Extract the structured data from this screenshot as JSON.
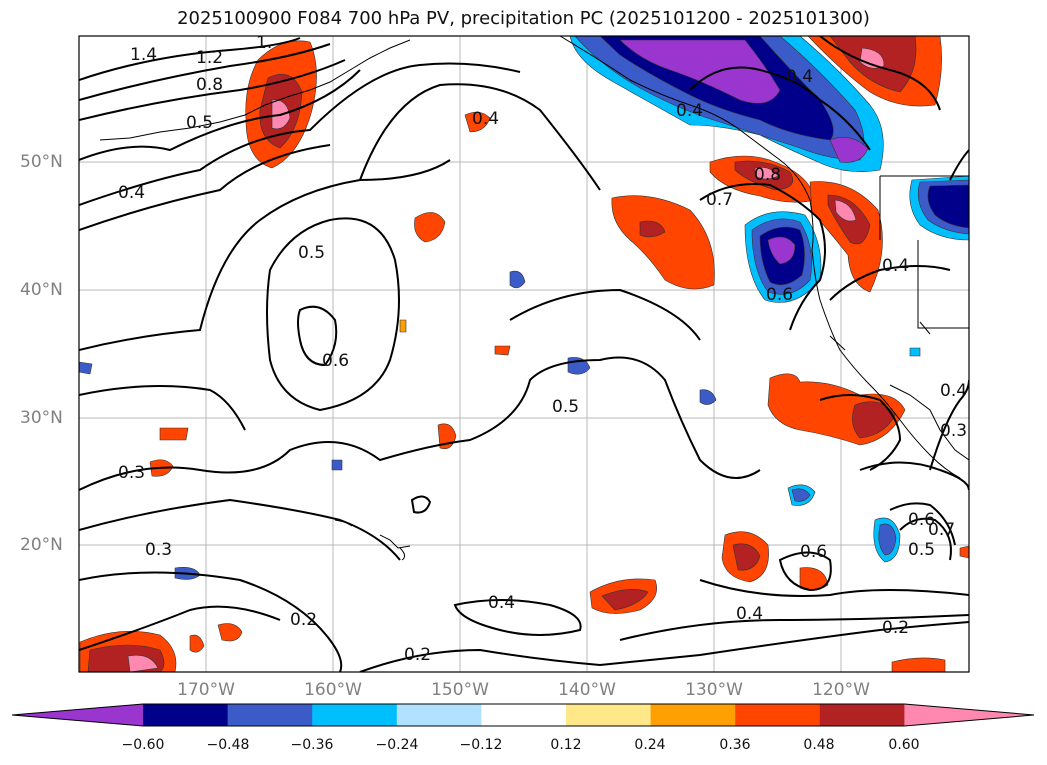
{
  "title": "2025100900 F084 700 hPa PV, precipitation PC (2025101200 - 2025101300)",
  "map": {
    "lon_labels": [
      "170°W",
      "160°W",
      "150°W",
      "140°W",
      "130°W",
      "120°W"
    ],
    "lat_labels": [
      "50°N",
      "40°N",
      "30°N",
      "20°N"
    ],
    "contour_labels": [
      "1.4",
      "1.2",
      "1.",
      "0.8",
      "0.5",
      "0.4",
      "0.5",
      "0.6",
      "0.4",
      "0.5",
      "0.3",
      "0.3",
      "0.2",
      "0.2",
      "0.4",
      "0.4",
      "0.6",
      "0.4",
      "0.2",
      "0.7",
      "0.8",
      "0.6",
      "0.4",
      "0.4",
      "0.4",
      "0.3",
      "0.6",
      "0.7",
      "0.5"
    ]
  },
  "colorbar": {
    "ticks": [
      "−0.60",
      "−0.48",
      "−0.36",
      "−0.24",
      "−0.12",
      "0.12",
      "0.24",
      "0.36",
      "0.48",
      "0.60"
    ],
    "colors": [
      "#9a35d0",
      "#00008b",
      "#3b5cc8",
      "#00bfff",
      "#b0e2ff",
      "#ffffff",
      "#ffe88a",
      "#ffa000",
      "#ff4500",
      "#b22222",
      "#ff88b0"
    ]
  }
}
